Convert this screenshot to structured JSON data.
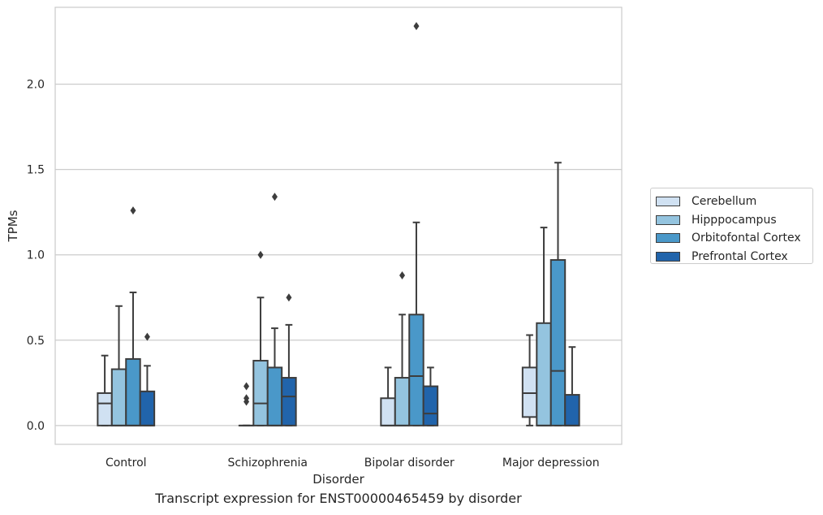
{
  "caption": "Transcript expression for ENST00000465459 by disorder",
  "chart_data": {
    "type": "boxplot",
    "xlabel": "Disorder",
    "ylabel": "TPMs",
    "ylim": [
      -0.11,
      2.45
    ],
    "yticks": [
      "0.0",
      "0.5",
      "1.0",
      "1.5",
      "2.0"
    ],
    "categories": [
      "Control",
      "Schizophrenia",
      "Bipolar disorder",
      "Major depression"
    ],
    "grid": true,
    "legend_position": "right",
    "series": [
      {
        "name": "Cerebellum",
        "color": "#d0e1f2",
        "boxes": [
          {
            "whislo": 0.0,
            "q1": 0.0,
            "med": 0.13,
            "q3": 0.19,
            "whishi": 0.41,
            "fliers": []
          },
          {
            "whislo": 0.0,
            "q1": 0.0,
            "med": 0.0,
            "q3": 0.0,
            "whishi": 0.0,
            "fliers": [
              0.14,
              0.16,
              0.23
            ]
          },
          {
            "whislo": 0.0,
            "q1": 0.0,
            "med": 0.0,
            "q3": 0.16,
            "whishi": 0.34,
            "fliers": []
          },
          {
            "whislo": 0.0,
            "q1": 0.05,
            "med": 0.19,
            "q3": 0.34,
            "whishi": 0.53,
            "fliers": []
          }
        ]
      },
      {
        "name": "Hipppocampus",
        "color": "#94c4df",
        "boxes": [
          {
            "whislo": 0.0,
            "q1": 0.0,
            "med": 0.0,
            "q3": 0.33,
            "whishi": 0.7,
            "fliers": []
          },
          {
            "whislo": 0.0,
            "q1": 0.0,
            "med": 0.13,
            "q3": 0.38,
            "whishi": 0.75,
            "fliers": [
              1.0
            ]
          },
          {
            "whislo": 0.0,
            "q1": 0.0,
            "med": 0.0,
            "q3": 0.28,
            "whishi": 0.65,
            "fliers": [
              0.88
            ]
          },
          {
            "whislo": 0.0,
            "q1": 0.0,
            "med": 0.0,
            "q3": 0.6,
            "whishi": 1.16,
            "fliers": []
          }
        ]
      },
      {
        "name": "Orbitofontal Cortex",
        "color": "#4a98c9",
        "boxes": [
          {
            "whislo": 0.0,
            "q1": 0.0,
            "med": 0.0,
            "q3": 0.39,
            "whishi": 0.78,
            "fliers": [
              1.26
            ]
          },
          {
            "whislo": 0.0,
            "q1": 0.0,
            "med": 0.0,
            "q3": 0.34,
            "whishi": 0.57,
            "fliers": [
              1.34
            ]
          },
          {
            "whislo": 0.0,
            "q1": 0.0,
            "med": 0.29,
            "q3": 0.65,
            "whishi": 1.19,
            "fliers": [
              2.34
            ]
          },
          {
            "whislo": 0.0,
            "q1": 0.0,
            "med": 0.32,
            "q3": 0.97,
            "whishi": 1.54,
            "fliers": []
          }
        ]
      },
      {
        "name": "Prefrontal Cortex",
        "color": "#2164ab",
        "boxes": [
          {
            "whislo": 0.0,
            "q1": 0.0,
            "med": 0.0,
            "q3": 0.2,
            "whishi": 0.35,
            "fliers": [
              0.52
            ]
          },
          {
            "whislo": 0.0,
            "q1": 0.0,
            "med": 0.17,
            "q3": 0.28,
            "whishi": 0.59,
            "fliers": [
              0.75
            ]
          },
          {
            "whislo": 0.0,
            "q1": 0.0,
            "med": 0.07,
            "q3": 0.23,
            "whishi": 0.34,
            "fliers": []
          },
          {
            "whislo": 0.0,
            "q1": 0.0,
            "med": 0.0,
            "q3": 0.18,
            "whishi": 0.46,
            "fliers": []
          }
        ]
      }
    ]
  }
}
